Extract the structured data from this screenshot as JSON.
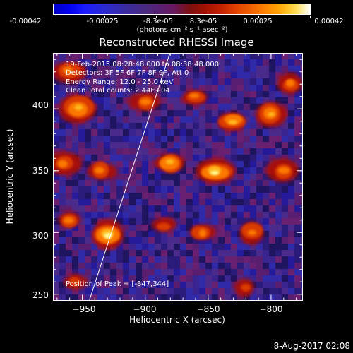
{
  "colorbar": {
    "tick_labels": [
      "-0.00042",
      "-0.00025",
      "-8.3e-05",
      "8.3e-05",
      "0.00025",
      "0.00042"
    ],
    "units": "(photons cm⁻² s⁻¹ asec⁻²)",
    "range": [
      -0.00042,
      0.00042
    ],
    "colormap": [
      "#0000c8",
      "#4a2a80",
      "#7a1010",
      "#e04000",
      "#ffa000",
      "#ffffff"
    ]
  },
  "info": {
    "time_range": "19-Feb-2015 08:28:48.000 to 08:38:48.000",
    "detectors": "Detectors: 3F 5F 6F 7F 8F 9F, Att 0",
    "energy": "Energy Range: 12.0 - 25.0 keV",
    "method": "Clean     Total counts: 2.44E+04",
    "peak": "Position of Peak = [-847,344]"
  },
  "footer": {
    "date": "8-Aug-2017 02:08"
  },
  "chart_data": {
    "type": "heatmap",
    "title": "Reconstructed RHESSI Image",
    "xlabel": "Heliocentric X (arcsec)",
    "ylabel": "Heliocentric Y (arcsec)",
    "xlim": [
      -973,
      -775
    ],
    "ylim": [
      245,
      445
    ],
    "x_ticks": [
      -950,
      -900,
      -850,
      -800
    ],
    "y_ticks": [
      250,
      300,
      350,
      400
    ],
    "x_tick_labels": [
      "−950",
      "−900",
      "−850",
      "−800"
    ],
    "y_tick_labels": [
      "250",
      "300",
      "350",
      "400"
    ],
    "peak_position": [
      -847,
      344
    ],
    "limb_line": [
      [
        -944,
        245
      ],
      [
        -880,
        445
      ]
    ],
    "hot_spots": [
      {
        "x": -844,
        "y": 349,
        "intensity": 1.0
      },
      {
        "x": -953,
        "y": 400,
        "intensity": 0.85
      },
      {
        "x": -930,
        "y": 298,
        "intensity": 0.9
      },
      {
        "x": -880,
        "y": 356,
        "intensity": 0.75
      },
      {
        "x": -830,
        "y": 390,
        "intensity": 0.7
      },
      {
        "x": -800,
        "y": 395,
        "intensity": 0.7
      },
      {
        "x": -935,
        "y": 350,
        "intensity": 0.65
      },
      {
        "x": -790,
        "y": 350,
        "intensity": 0.6
      },
      {
        "x": -965,
        "y": 355,
        "intensity": 0.6
      },
      {
        "x": -900,
        "y": 405,
        "intensity": 0.55
      },
      {
        "x": -860,
        "y": 410,
        "intensity": 0.5
      },
      {
        "x": -815,
        "y": 300,
        "intensity": 0.55
      },
      {
        "x": -855,
        "y": 300,
        "intensity": 0.5
      },
      {
        "x": -885,
        "y": 305,
        "intensity": 0.45
      },
      {
        "x": -960,
        "y": 310,
        "intensity": 0.5
      },
      {
        "x": -955,
        "y": 260,
        "intensity": 0.45
      },
      {
        "x": -820,
        "y": 255,
        "intensity": 0.4
      },
      {
        "x": -785,
        "y": 420,
        "intensity": 0.5
      },
      {
        "x": -960,
        "y": 430,
        "intensity": 0.55
      }
    ]
  }
}
